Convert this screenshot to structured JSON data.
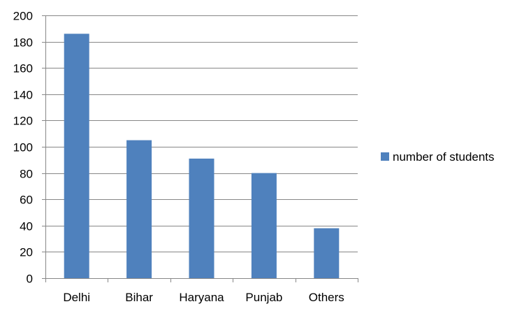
{
  "chart_data": {
    "type": "bar",
    "title": "",
    "xlabel": "",
    "ylabel": "",
    "categories": [
      "Delhi",
      "Bihar",
      "Haryana",
      "Punjab",
      "Others"
    ],
    "series": [
      {
        "name": "number of students",
        "values": [
          186,
          105,
          91,
          80,
          38
        ],
        "color": "#4F81BD"
      }
    ],
    "ylim": [
      0,
      200
    ],
    "yticks": [
      0,
      20,
      40,
      60,
      80,
      100,
      120,
      140,
      160,
      180,
      200
    ],
    "grid": true,
    "legend_position": "right"
  }
}
